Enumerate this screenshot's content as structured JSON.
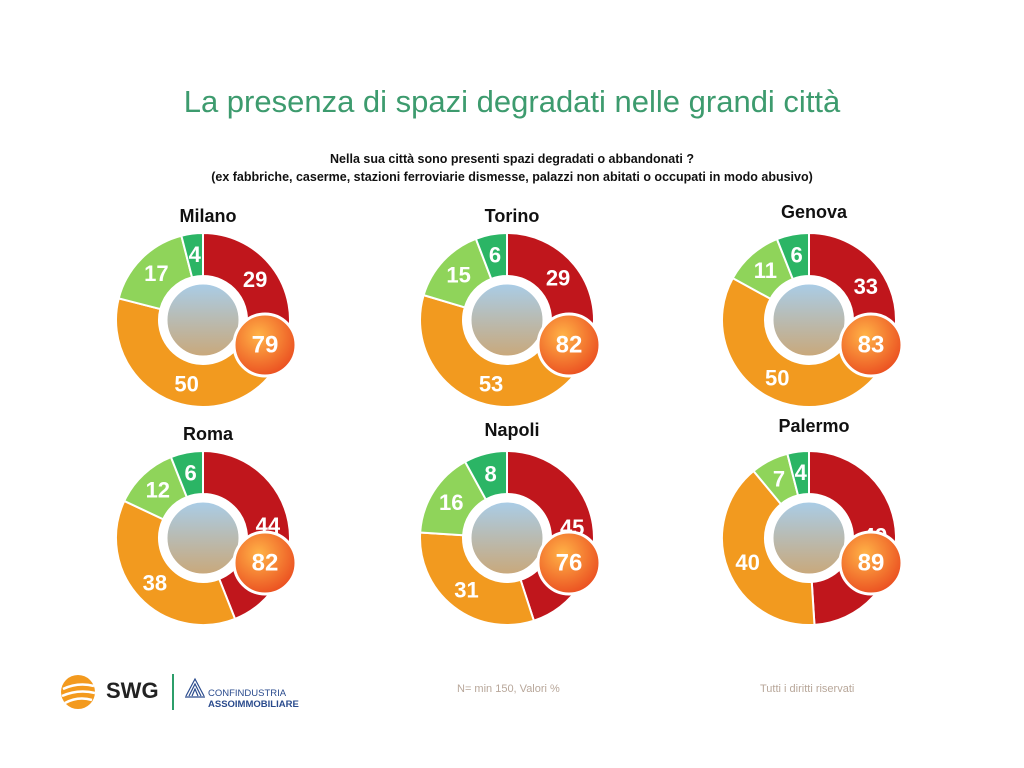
{
  "title": "La presenza di spazi degradati nelle grandi città",
  "question": {
    "line1": "Nella sua città sono presenti spazi degradati o abbandonati ?",
    "line2": "(ex fabbriche, caserme, stazioni ferroviarie dismesse, palazzi non abitati o occupati in modo abusivo)"
  },
  "colors": {
    "molti": "#c0161c",
    "alcuni": "#f29a1f",
    "pochi": "#8fd45a",
    "nessuno": "#2bb565",
    "total_bubble": "#ea4b1f",
    "title": "#3d9b6e"
  },
  "chart_data": [
    {
      "type": "pie",
      "city": "Milano",
      "values": [
        29,
        50,
        17,
        4
      ],
      "total": 79
    },
    {
      "type": "pie",
      "city": "Torino",
      "values": [
        29,
        53,
        15,
        6
      ],
      "total": 82
    },
    {
      "type": "pie",
      "city": "Genova",
      "values": [
        33,
        50,
        11,
        6
      ],
      "total": 83
    },
    {
      "type": "pie",
      "city": "Roma",
      "values": [
        44,
        38,
        12,
        6
      ],
      "total": 82
    },
    {
      "type": "pie",
      "city": "Napoli",
      "values": [
        45,
        31,
        16,
        8
      ],
      "total": 76
    },
    {
      "type": "pie",
      "city": "Palermo",
      "values": [
        49,
        40,
        7,
        4
      ],
      "total": 89
    }
  ],
  "footer": {
    "brand": "SWG",
    "partner_line1": "CONFINDUSTRIA",
    "partner_line2": "ASSOIMMOBILIARE",
    "note": "N= min 150, Valori  %",
    "rights": "Tutti i diritti riservati"
  }
}
